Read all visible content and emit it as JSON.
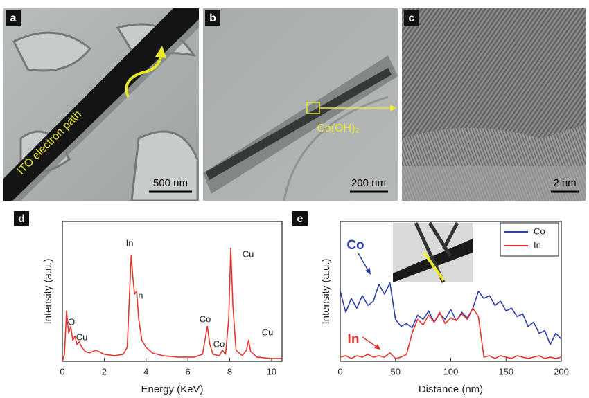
{
  "panels": [
    {
      "label": "a",
      "texts": [
        "ITO electron path",
        "500 nm"
      ]
    },
    {
      "label": "b",
      "texts": [
        "Co(OH)₂",
        "200 nm"
      ]
    },
    {
      "label": "c",
      "texts": [
        "2 nm"
      ]
    }
  ],
  "chart_data": [
    {
      "type": "line",
      "panel_label": "d",
      "x_label": "Energy (KeV)",
      "y_label": "Intensity (a.u.)",
      "xlim": [
        0,
        10.5
      ],
      "xticks": [
        0,
        2,
        4,
        6,
        8,
        10
      ],
      "ylim": [
        0,
        100
      ],
      "color": "#e8342e",
      "x": [
        0,
        0.1,
        0.2,
        0.3,
        0.4,
        0.5,
        0.6,
        0.7,
        0.8,
        0.93,
        1.1,
        1.3,
        1.6,
        2.0,
        2.5,
        2.9,
        3.1,
        3.2,
        3.29,
        3.37,
        3.45,
        3.55,
        3.65,
        3.8,
        4.0,
        4.3,
        4.8,
        5.5,
        6.3,
        6.7,
        6.85,
        6.93,
        7.05,
        7.2,
        7.5,
        7.65,
        7.8,
        7.95,
        8.05,
        8.15,
        8.3,
        8.6,
        8.8,
        8.9,
        9.0,
        9.3,
        10.0,
        10.5
      ],
      "values": [
        0,
        5,
        36,
        20,
        25,
        15,
        18,
        12,
        14,
        10,
        7,
        6,
        8,
        5,
        4,
        5,
        10,
        45,
        76,
        60,
        48,
        50,
        30,
        15,
        10,
        6,
        4,
        3,
        3,
        5,
        18,
        25,
        12,
        5,
        4,
        8,
        5,
        30,
        81,
        40,
        8,
        4,
        8,
        15,
        7,
        3,
        2,
        2
      ],
      "annotations": [
        "O",
        "Cu",
        "In",
        "In",
        "Co",
        "Co",
        "Cu",
        "Cu"
      ]
    },
    {
      "type": "line",
      "panel_label": "e",
      "x_label": "Distance (nm)",
      "y_label": "Intensity (a.u.)",
      "xlim": [
        0,
        200
      ],
      "xticks": [
        0,
        50,
        100,
        150,
        200
      ],
      "ylim": [
        0,
        100
      ],
      "legend": "upper right",
      "x": [
        0,
        5,
        10,
        15,
        20,
        25,
        30,
        35,
        40,
        45,
        50,
        55,
        60,
        65,
        70,
        75,
        80,
        85,
        90,
        95,
        100,
        105,
        110,
        115,
        120,
        125,
        130,
        135,
        140,
        145,
        150,
        155,
        160,
        165,
        170,
        175,
        180,
        185,
        190,
        195,
        200
      ],
      "series": [
        {
          "name": "Co",
          "color": "#2b3fa8",
          "values": [
            50,
            35,
            45,
            38,
            47,
            40,
            43,
            55,
            48,
            56,
            30,
            25,
            27,
            24,
            33,
            30,
            36,
            28,
            34,
            30,
            37,
            29,
            35,
            31,
            38,
            50,
            45,
            47,
            40,
            43,
            36,
            38,
            32,
            34,
            25,
            28,
            20,
            22,
            12,
            20,
            16
          ]
        },
        {
          "name": "In",
          "color": "#e8342e",
          "values": [
            3,
            4,
            2,
            4,
            3,
            5,
            3,
            4,
            3,
            6,
            2,
            3,
            5,
            20,
            30,
            26,
            33,
            28,
            35,
            27,
            31,
            29,
            34,
            30,
            38,
            32,
            3,
            4,
            2,
            4,
            3,
            2,
            4,
            3,
            2,
            3,
            4,
            2,
            3,
            2,
            3
          ]
        }
      ],
      "annotations": [
        "Co",
        "In"
      ]
    }
  ]
}
